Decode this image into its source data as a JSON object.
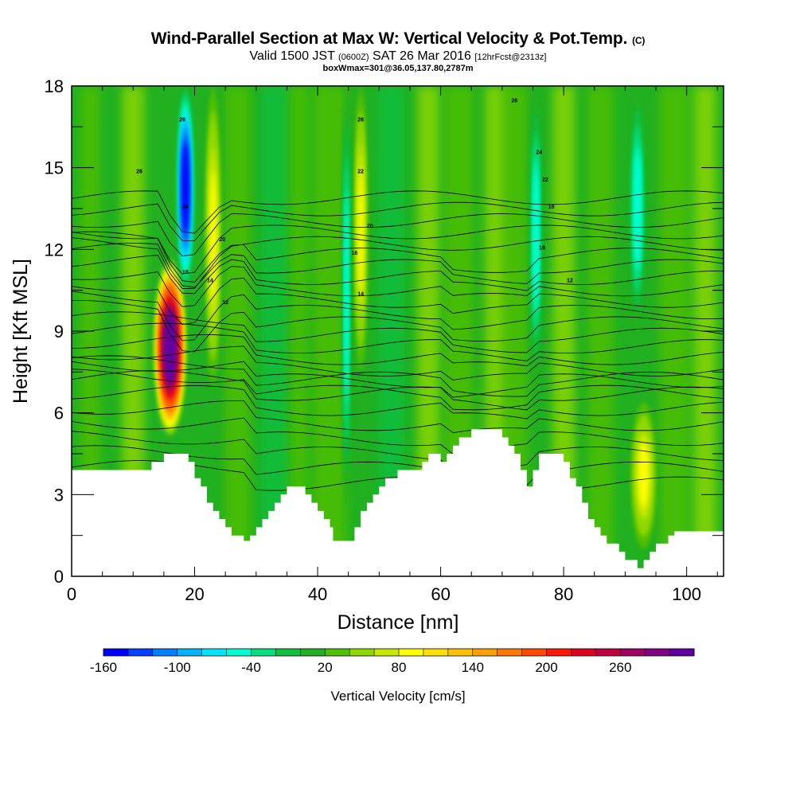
{
  "title": {
    "main": "Wind-Parallel Section at Max W: Vertical Velocity & Pot.Temp.",
    "copyright": "(C)",
    "valid_prefix": "Valid 1500 JST",
    "valid_utc": "(0600Z)",
    "valid_date": "SAT 26 Mar 2016",
    "forecast": "[12hrFcst@2313z]",
    "box_info": "boxWmax=301@36.05,137.80,2787m"
  },
  "chart_data": {
    "type": "heatmap",
    "xlabel": "Distance [nm]",
    "ylabel": "Height [Kft MSL]",
    "xlim": [
      0,
      106
    ],
    "ylim": [
      0,
      18
    ],
    "x_ticks": [
      "0",
      "20",
      "40",
      "60",
      "80",
      "100"
    ],
    "y_ticks": [
      "0",
      "3",
      "6",
      "9",
      "12",
      "15",
      "18"
    ],
    "colorbar": {
      "title": "Vertical Velocity [cm/s]",
      "tick_labels": [
        "-160",
        "-100",
        "-40",
        "20",
        "80",
        "140",
        "200",
        "260"
      ],
      "levels": [
        -160,
        -140,
        -120,
        -100,
        -80,
        -60,
        -40,
        -20,
        0,
        20,
        40,
        60,
        80,
        100,
        120,
        140,
        160,
        180,
        200,
        220,
        240,
        260,
        280,
        300
      ],
      "colors": [
        "#0000ff",
        "#0040ff",
        "#0080ff",
        "#00b4ff",
        "#00e4ff",
        "#00ffd0",
        "#00e080",
        "#10c040",
        "#20b020",
        "#50c000",
        "#90d800",
        "#c8e800",
        "#ffff00",
        "#ffe000",
        "#ffc000",
        "#ffa000",
        "#ff7800",
        "#ff4800",
        "#ff1800",
        "#e00020",
        "#c00040",
        "#a00060",
        "#800080",
        "#6000a0"
      ]
    },
    "terrain_kft": [
      [
        0,
        3.9
      ],
      [
        13,
        3.9
      ],
      [
        13,
        4.2
      ],
      [
        15,
        4.2
      ],
      [
        15,
        4.5
      ],
      [
        19,
        4.5
      ],
      [
        19,
        4.2
      ],
      [
        20,
        4.2
      ],
      [
        20,
        3.6
      ],
      [
        21,
        3.6
      ],
      [
        21,
        3.3
      ],
      [
        22,
        3.3
      ],
      [
        22,
        2.7
      ],
      [
        23,
        2.7
      ],
      [
        23,
        2.4
      ],
      [
        24,
        2.4
      ],
      [
        24,
        2.1
      ],
      [
        25,
        2.1
      ],
      [
        25,
        1.8
      ],
      [
        26,
        1.8
      ],
      [
        26,
        1.5
      ],
      [
        28,
        1.5
      ],
      [
        28,
        1.3
      ],
      [
        29,
        1.3
      ],
      [
        29,
        1.5
      ],
      [
        30,
        1.5
      ],
      [
        30,
        1.8
      ],
      [
        31,
        1.8
      ],
      [
        31,
        2.1
      ],
      [
        32,
        2.1
      ],
      [
        32,
        2.4
      ],
      [
        33,
        2.4
      ],
      [
        33,
        2.7
      ],
      [
        34,
        2.7
      ],
      [
        34,
        3.0
      ],
      [
        35,
        3.0
      ],
      [
        35,
        3.3
      ],
      [
        38,
        3.3
      ],
      [
        38,
        3.0
      ],
      [
        39,
        3.0
      ],
      [
        39,
        2.7
      ],
      [
        40,
        2.7
      ],
      [
        40,
        2.4
      ],
      [
        41,
        2.4
      ],
      [
        41,
        2.1
      ],
      [
        42,
        2.1
      ],
      [
        42,
        1.8
      ],
      [
        42.5,
        1.8
      ],
      [
        42.5,
        1.3
      ],
      [
        46,
        1.3
      ],
      [
        46,
        1.8
      ],
      [
        47,
        1.8
      ],
      [
        47,
        2.4
      ],
      [
        48,
        2.4
      ],
      [
        48,
        2.7
      ],
      [
        49,
        2.7
      ],
      [
        49,
        3.0
      ],
      [
        50,
        3.0
      ],
      [
        50,
        3.3
      ],
      [
        51,
        3.3
      ],
      [
        51,
        3.6
      ],
      [
        53,
        3.6
      ],
      [
        53,
        3.9
      ],
      [
        57,
        3.9
      ],
      [
        57,
        4.2
      ],
      [
        58,
        4.2
      ],
      [
        58,
        4.5
      ],
      [
        60,
        4.5
      ],
      [
        60,
        4.2
      ],
      [
        61,
        4.2
      ],
      [
        61,
        4.5
      ],
      [
        62,
        4.5
      ],
      [
        62,
        4.8
      ],
      [
        63,
        4.8
      ],
      [
        63,
        5.1
      ],
      [
        65,
        5.1
      ],
      [
        65,
        5.4
      ],
      [
        70,
        5.4
      ],
      [
        70,
        5.1
      ],
      [
        71,
        5.1
      ],
      [
        71,
        4.8
      ],
      [
        72,
        4.8
      ],
      [
        72,
        4.5
      ],
      [
        73,
        4.5
      ],
      [
        73,
        3.9
      ],
      [
        74,
        3.9
      ],
      [
        74,
        3.3
      ],
      [
        75,
        3.3
      ],
      [
        75,
        3.9
      ],
      [
        76,
        3.9
      ],
      [
        76,
        4.5
      ],
      [
        80,
        4.5
      ],
      [
        80,
        4.2
      ],
      [
        81,
        4.2
      ],
      [
        81,
        3.6
      ],
      [
        82,
        3.6
      ],
      [
        82,
        3.3
      ],
      [
        83,
        3.3
      ],
      [
        83,
        2.7
      ],
      [
        84,
        2.7
      ],
      [
        84,
        2.1
      ],
      [
        85,
        2.1
      ],
      [
        85,
        1.8
      ],
      [
        86,
        1.8
      ],
      [
        86,
        1.5
      ],
      [
        87,
        1.5
      ],
      [
        87,
        1.2
      ],
      [
        89,
        1.2
      ],
      [
        89,
        0.9
      ],
      [
        90,
        0.9
      ],
      [
        90,
        0.6
      ],
      [
        92,
        0.6
      ],
      [
        92,
        0.3
      ],
      [
        93,
        0.3
      ],
      [
        93,
        0.6
      ],
      [
        94,
        0.6
      ],
      [
        94,
        0.9
      ],
      [
        95,
        0.9
      ],
      [
        95,
        1.2
      ],
      [
        97,
        1.2
      ],
      [
        97,
        1.5
      ],
      [
        98,
        1.5
      ],
      [
        98,
        1.65
      ],
      [
        106,
        1.65
      ]
    ],
    "updrafts": [
      {
        "x": 16,
        "x_width": 2.6,
        "y_bottom": 5.2,
        "y_top": 11.6,
        "w_max": 301
      },
      {
        "x": 23,
        "x_width": 1.2,
        "y_bottom": 7.0,
        "y_top": 18,
        "w_max": 80
      },
      {
        "x": 47,
        "x_width": 1.0,
        "y_bottom": 7.5,
        "y_top": 18,
        "w_max": 80
      },
      {
        "x": 93,
        "x_width": 2.0,
        "y_bottom": 1.0,
        "y_top": 6.4,
        "w_max": 80
      }
    ],
    "downdrafts": [
      {
        "x": 18.5,
        "x_width": 1.3,
        "y_bottom": 10.5,
        "y_top": 18,
        "w_min": -160
      },
      {
        "x": 44.7,
        "x_width": 0.6,
        "y_bottom": 2.5,
        "y_top": 18,
        "w_min": -60
      },
      {
        "x": 75.5,
        "x_width": 0.9,
        "y_bottom": 7.0,
        "y_top": 18,
        "w_min": -60
      },
      {
        "x": 92,
        "x_width": 1.2,
        "y_bottom": 9.0,
        "y_top": 18,
        "w_min": -60
      }
    ],
    "theta_contour_labels": [
      "26",
      "26",
      "26",
      "26",
      "24",
      "24",
      "22",
      "22",
      "20",
      "20",
      "18",
      "18",
      "16",
      "16",
      "14",
      "14",
      "12",
      "12"
    ]
  }
}
